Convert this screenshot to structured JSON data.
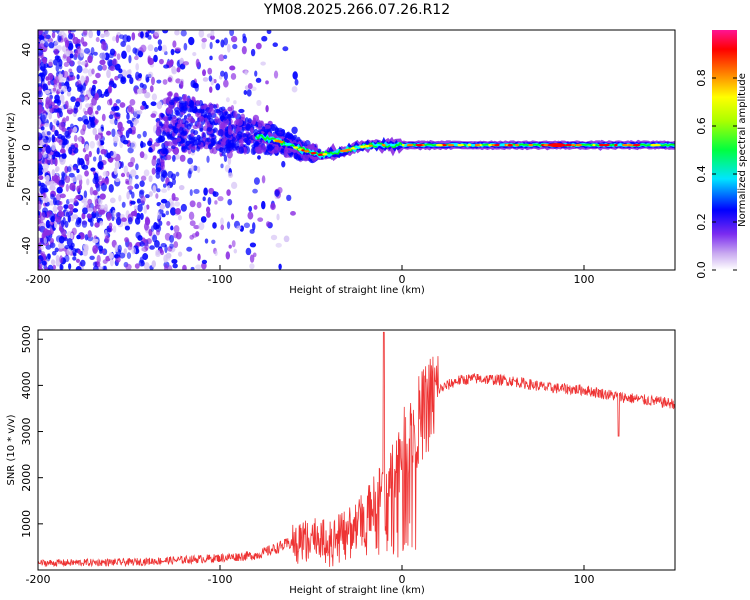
{
  "title": "YM08.2025.266.07.26.R12",
  "chart_data": [
    {
      "type": "heatmap",
      "name": "spectrogram",
      "xlabel": "Height of straight line (km)",
      "ylabel": "Frequency (Hz)",
      "xlim": [
        -200,
        150
      ],
      "ylim": [
        -50,
        48
      ],
      "x_ticks": [
        -200,
        -100,
        0,
        100
      ],
      "y_ticks": [
        -40,
        -20,
        0,
        20,
        40
      ],
      "colorbar": {
        "label": "Normalized spectral amplitude",
        "range": [
          0.0,
          1.0
        ],
        "ticks": [
          0.0,
          0.2,
          0.4,
          0.6,
          0.8
        ],
        "colormap": [
          "#ffffff",
          "#8a2be2",
          "#0000ff",
          "#00ffff",
          "#00ff00",
          "#ffff00",
          "#ff8000",
          "#ff0000",
          "#ff1493"
        ]
      },
      "features": {
        "signal_line_hz": [
          [
            -130,
            10
          ],
          [
            -110,
            9
          ],
          [
            -90,
            6
          ],
          [
            -75,
            4
          ],
          [
            -65,
            2
          ],
          [
            -55,
            -1
          ],
          [
            -45,
            -3
          ],
          [
            -35,
            -2
          ],
          [
            -25,
            0
          ],
          [
            -15,
            1
          ],
          [
            0,
            1
          ],
          [
            50,
            1
          ],
          [
            100,
            1
          ],
          [
            150,
            1
          ]
        ],
        "noise_region_km": [
          -200,
          -55
        ],
        "peak_amplitude_km": [
          80,
          90
        ]
      }
    },
    {
      "type": "line",
      "name": "snr",
      "xlabel": "Height of straight line (km)",
      "ylabel": "SNR (10 * v/v)",
      "xlim": [
        -200,
        150
      ],
      "ylim": [
        0,
        5200
      ],
      "x_ticks": [
        -200,
        -100,
        0,
        100
      ],
      "y_ticks": [
        1000,
        2000,
        3000,
        4000,
        5000
      ],
      "color": "#ee3333",
      "envelope": {
        "x": [
          -200,
          -150,
          -120,
          -100,
          -80,
          -60,
          -50,
          -40,
          -30,
          -20,
          -10,
          0,
          10,
          20,
          30,
          40,
          60,
          80,
          100,
          120,
          140,
          150
        ],
        "y": [
          150,
          170,
          220,
          260,
          320,
          600,
          800,
          650,
          900,
          1200,
          1800,
          2600,
          3300,
          3900,
          4100,
          4150,
          4100,
          3950,
          3900,
          3750,
          3650,
          3600
        ]
      },
      "spikes": [
        {
          "x": -10,
          "y": 5150
        },
        {
          "x": 119,
          "y": 2900
        }
      ]
    }
  ]
}
